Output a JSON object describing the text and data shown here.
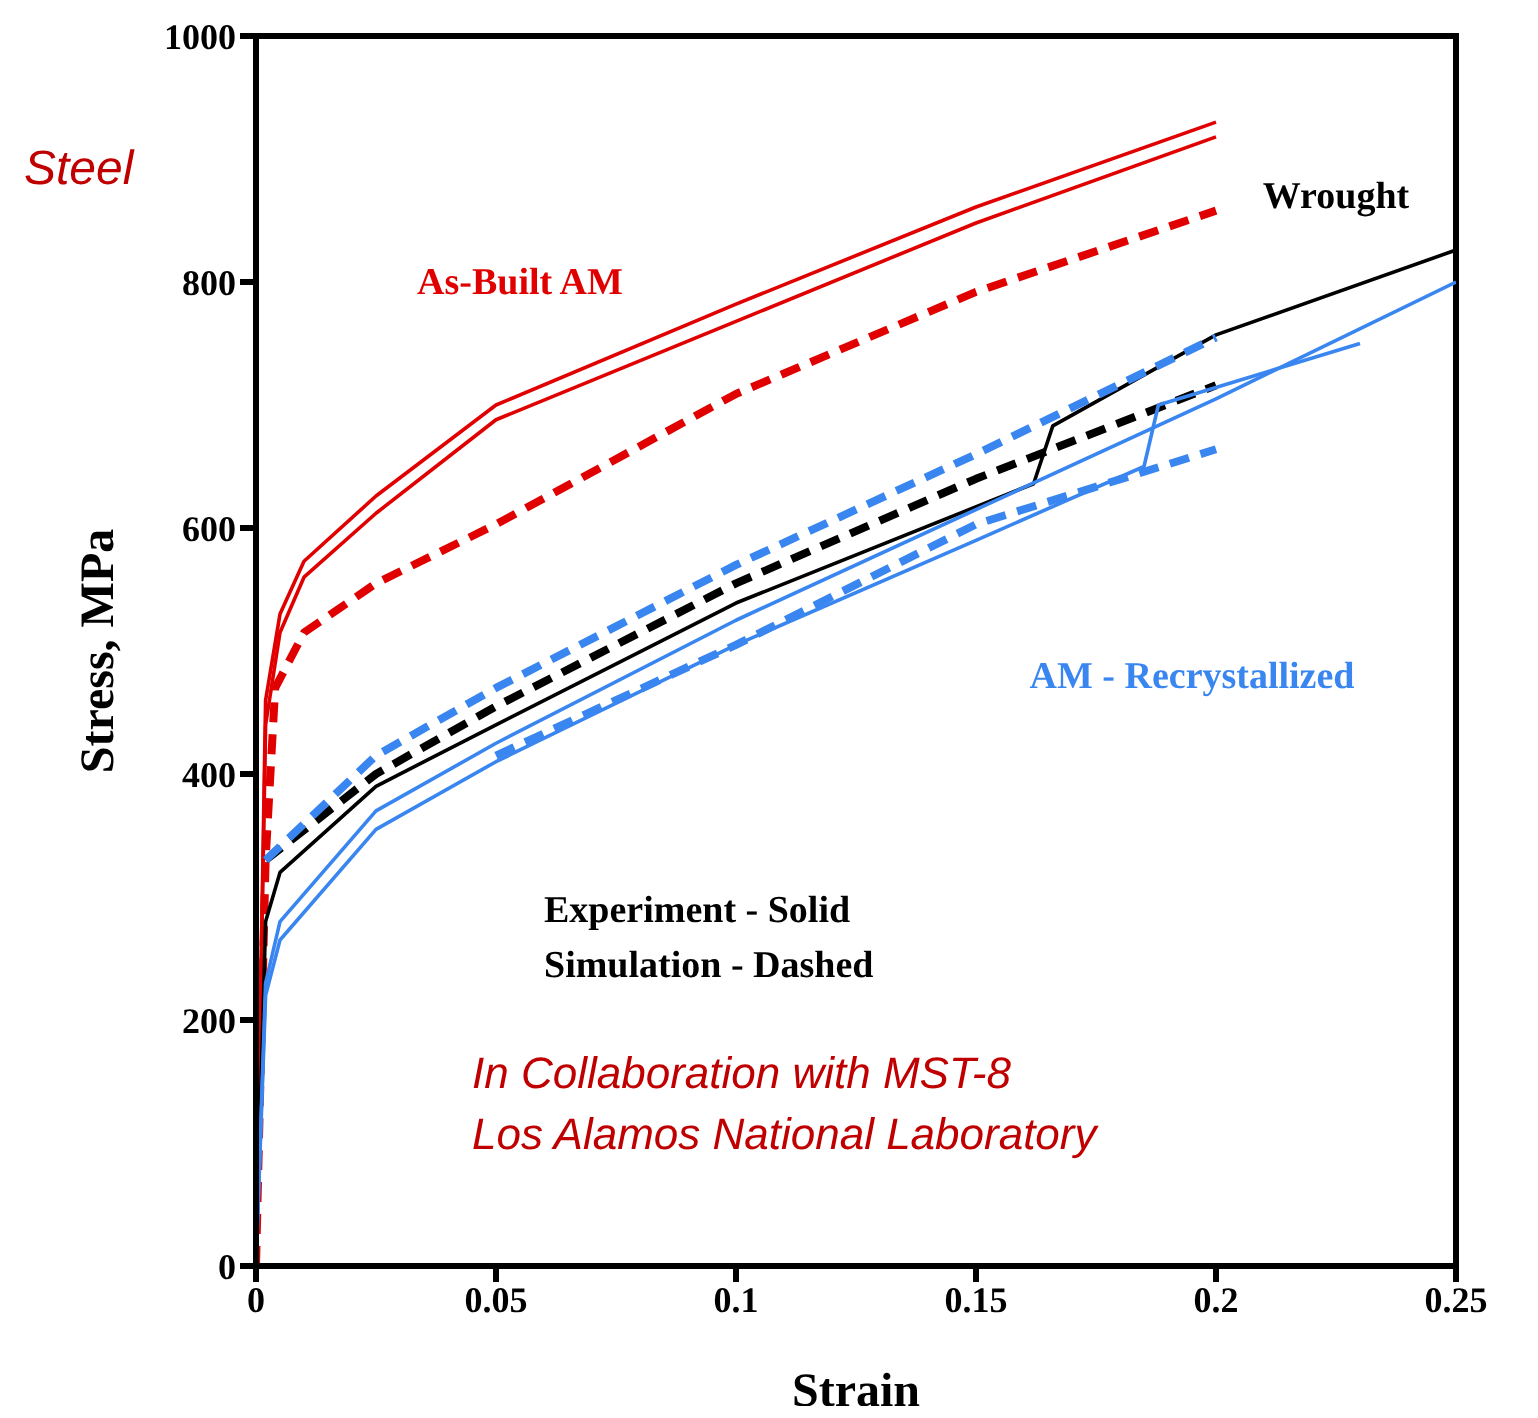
{
  "chart_data": {
    "type": "line",
    "xlabel": "Strain",
    "ylabel": "Stress, MPa",
    "xlim": [
      0,
      0.25
    ],
    "ylim": [
      0,
      1000
    ],
    "xticks": [
      0,
      0.05,
      0.1,
      0.15,
      0.2,
      0.25
    ],
    "yticks": [
      0,
      200,
      400,
      600,
      800,
      1000
    ],
    "marker": "none",
    "series": [
      {
        "color": "#e00000",
        "line_style": "solid",
        "x": [
          0,
          0.002,
          0.005,
          0.01,
          0.025,
          0.05,
          0.1,
          0.15,
          0.2
        ],
        "values": [
          0,
          460,
          530,
          573,
          626,
          700,
          782,
          861,
          930
        ]
      },
      {
        "color": "#e00000",
        "line_style": "solid",
        "x": [
          0,
          0.002,
          0.005,
          0.01,
          0.025,
          0.05,
          0.1,
          0.15,
          0.2
        ],
        "values": [
          0,
          440,
          515,
          560,
          612,
          688,
          768,
          848,
          918
        ]
      },
      {
        "color": "#e00000",
        "line_style": "dashed",
        "x": [
          0,
          0.002,
          0.004,
          0.01,
          0.025,
          0.05,
          0.1,
          0.15,
          0.2
        ],
        "values": [
          0,
          330,
          470,
          515,
          555,
          603,
          709,
          792,
          858
        ]
      },
      {
        "color": "#000000",
        "line_style": "solid",
        "x": [
          0,
          0.002,
          0.005,
          0.025,
          0.05,
          0.1,
          0.162,
          0.166,
          0.2,
          0.25
        ],
        "values": [
          0,
          280,
          320,
          390,
          440,
          539,
          636,
          683,
          757,
          826
        ]
      },
      {
        "color": "#000000",
        "line_style": "dashed",
        "x": [
          0.002,
          0.025,
          0.05,
          0.1,
          0.15,
          0.2
        ],
        "values": [
          330,
          400,
          455,
          555,
          640,
          716
        ]
      },
      {
        "color": "#3a86f0",
        "line_style": "solid",
        "x": [
          0,
          0.002,
          0.005,
          0.025,
          0.05,
          0.1,
          0.15,
          0.2,
          0.25
        ],
        "values": [
          0,
          230,
          280,
          370,
          425,
          525,
          615,
          705,
          800
        ]
      },
      {
        "color": "#3a86f0",
        "line_style": "solid",
        "x": [
          0,
          0.002,
          0.005,
          0.025,
          0.05,
          0.1,
          0.15,
          0.185,
          0.188,
          0.23
        ],
        "values": [
          0,
          220,
          265,
          355,
          410,
          505,
          590,
          650,
          700,
          750
        ]
      },
      {
        "color": "#3a86f0",
        "line_style": "dashed",
        "x": [
          0.002,
          0.025,
          0.05,
          0.1,
          0.15,
          0.2
        ],
        "values": [
          330,
          415,
          470,
          570,
          660,
          755
        ]
      },
      {
        "color": "#3a86f0",
        "line_style": "dashed",
        "x": [
          0.05,
          0.1,
          0.15,
          0.2
        ],
        "values": [
          415,
          505,
          603,
          664
        ]
      }
    ],
    "annotations": [
      "As-Built AM",
      "Wrought",
      "AM - Recrystallized",
      "Experiment - Solid",
      "Simulation - Dashed",
      "In Collaboration with MST-8",
      "Los Alamos National Laboratory",
      "Steel"
    ]
  }
}
